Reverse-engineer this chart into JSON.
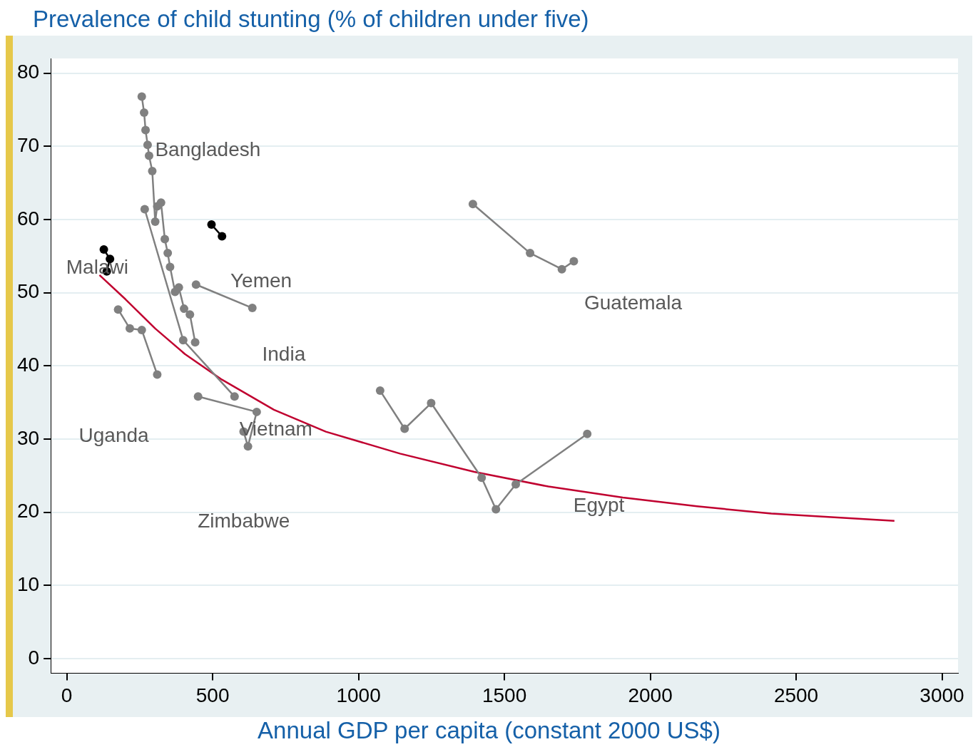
{
  "chart_data": {
    "type": "line",
    "title": "Prevalence of child stunting (% of children under five)",
    "xlabel": "Annual GDP per capita (constant 2000 US$)",
    "xlim": [
      -55,
      3055
    ],
    "xticks": [
      0,
      500,
      1000,
      1500,
      2000,
      2500,
      3000
    ],
    "ylim": [
      -2,
      82
    ],
    "yticks": [
      0,
      10,
      20,
      30,
      40,
      50,
      60,
      70,
      80
    ],
    "grid": "y",
    "legend": false,
    "marker": "circle",
    "series": [
      {
        "color": "#808080",
        "x": [
          257,
          265,
          270,
          277,
          282,
          293,
          303,
          310,
          323,
          336,
          346,
          354,
          371,
          384,
          402,
          422,
          440
        ],
        "values": [
          76.8,
          74.6,
          72.2,
          70.2,
          68.7,
          66.6,
          59.7,
          61.8,
          62.3,
          57.3,
          55.4,
          53.5,
          50.1,
          50.7,
          47.8,
          47.0,
          43.2
        ]
      },
      {
        "color": "#808080",
        "x": [
          267,
          399,
          575
        ],
        "values": [
          61.4,
          43.5,
          35.8
        ]
      },
      {
        "color": "#808080",
        "x": [
          176,
          216,
          257,
          310
        ],
        "values": [
          47.7,
          45.1,
          44.9,
          38.8
        ]
      },
      {
        "color": "#808080",
        "x": [
          450,
          651,
          621,
          606
        ],
        "values": [
          35.8,
          33.7,
          29.0,
          31.0
        ]
      },
      {
        "color": "#808080",
        "x": [
          443,
          636
        ],
        "values": [
          51.1,
          47.9
        ]
      },
      {
        "color": "#000000",
        "x": [
          127,
          148,
          137
        ],
        "values": [
          55.9,
          54.6,
          52.9
        ]
      },
      {
        "color": "#000000",
        "x": [
          496,
          532
        ],
        "values": [
          59.3,
          57.7
        ]
      },
      {
        "color": "#808080",
        "x": [
          1392,
          1588,
          1697,
          1738
        ],
        "values": [
          62.1,
          55.4,
          53.2,
          54.3
        ]
      },
      {
        "color": "#808080",
        "x": [
          1074,
          1158,
          1249,
          1422,
          1471,
          1539,
          1784
        ],
        "values": [
          36.6,
          31.4,
          34.9,
          24.7,
          20.4,
          23.8,
          30.7
        ]
      },
      {
        "color": "#c0002f",
        "marker": "none",
        "x": [
          112,
          201,
          303,
          405,
          532,
          710,
          888,
          1142,
          1397,
          1651,
          1906,
          2160,
          2415,
          2837
        ],
        "values": [
          52.4,
          49.1,
          45.1,
          41.6,
          38.1,
          34.0,
          31.0,
          28.0,
          25.5,
          23.5,
          22.0,
          20.8,
          19.8,
          18.8
        ]
      }
    ],
    "annotations": [
      "Bangladesh",
      "Malawi",
      "Yemen",
      "Guatemala",
      "India",
      "Uganda",
      "Vietnam",
      "Zimbabwe",
      "Egypt"
    ]
  }
}
